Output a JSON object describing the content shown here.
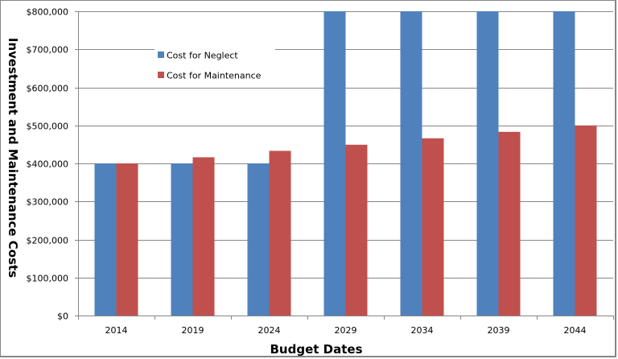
{
  "chart_data": {
    "type": "bar",
    "title": "",
    "xlabel": "Budget Dates",
    "ylabel": "Investment and Maintenance Costs",
    "categories": [
      "2014",
      "2019",
      "2024",
      "2029",
      "2034",
      "2039",
      "2044"
    ],
    "series": [
      {
        "name": "Cost for Neglect",
        "color": "#4F81BD",
        "values": [
          400000,
          400000,
          400000,
          800000,
          800000,
          800000,
          800000
        ]
      },
      {
        "name": "Cost for Maintenance",
        "color": "#C0504D",
        "values": [
          400000,
          416000,
          433000,
          449000,
          466000,
          483000,
          500000
        ]
      }
    ],
    "ylim": [
      0,
      800000
    ],
    "yticks": [
      0,
      100000,
      200000,
      300000,
      400000,
      500000,
      600000,
      700000,
      800000
    ],
    "ytick_labels": [
      "$0",
      "$100,000",
      "$200,000",
      "$300,000",
      "$400,000",
      "$500,000",
      "$600,000",
      "$700,000",
      "$800,000"
    ],
    "grid": true,
    "legend_position": "top-left inside plot"
  }
}
